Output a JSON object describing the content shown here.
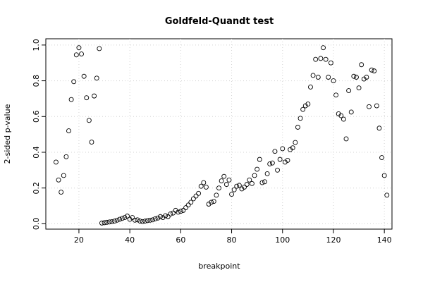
{
  "chart_data": {
    "type": "scatter",
    "title": "Goldfeld-Quandt test",
    "xlabel": "breakpoint",
    "ylabel": "2-sided p-value",
    "x": [
      11,
      12,
      13,
      14,
      15,
      16,
      17,
      18,
      19,
      20,
      21,
      22,
      23,
      24,
      25,
      26,
      27,
      28,
      29,
      30,
      31,
      32,
      33,
      34,
      35,
      36,
      37,
      38,
      39,
      40,
      41,
      42,
      43,
      44,
      45,
      46,
      47,
      48,
      49,
      50,
      51,
      52,
      53,
      54,
      55,
      56,
      57,
      58,
      59,
      60,
      61,
      62,
      63,
      64,
      65,
      66,
      67,
      68,
      69,
      70,
      71,
      72,
      73,
      74,
      75,
      76,
      77,
      78,
      79,
      80,
      81,
      82,
      83,
      84,
      85,
      86,
      87,
      88,
      89,
      90,
      91,
      92,
      93,
      94,
      95,
      96,
      97,
      98,
      99,
      100,
      101,
      102,
      103,
      104,
      105,
      106,
      107,
      108,
      109,
      110,
      111,
      112,
      113,
      114,
      115,
      116,
      117,
      118,
      119,
      120,
      121,
      122,
      123,
      124,
      125,
      126,
      127,
      128,
      129,
      130,
      131,
      132,
      133,
      134,
      135,
      136,
      137,
      138,
      139,
      140,
      141
    ],
    "values": [
      0.345,
      0.245,
      0.177,
      0.27,
      0.375,
      0.52,
      0.695,
      0.795,
      0.945,
      0.985,
      0.95,
      0.825,
      0.705,
      0.578,
      0.457,
      0.715,
      0.815,
      0.98,
      0.004,
      0.006,
      0.008,
      0.01,
      0.012,
      0.015,
      0.02,
      0.025,
      0.03,
      0.035,
      0.043,
      0.025,
      0.035,
      0.02,
      0.022,
      0.015,
      0.012,
      0.015,
      0.018,
      0.02,
      0.022,
      0.028,
      0.032,
      0.04,
      0.035,
      0.045,
      0.04,
      0.055,
      0.06,
      0.075,
      0.065,
      0.07,
      0.075,
      0.09,
      0.105,
      0.12,
      0.14,
      0.155,
      0.17,
      0.21,
      0.23,
      0.205,
      0.11,
      0.12,
      0.125,
      0.16,
      0.2,
      0.24,
      0.265,
      0.22,
      0.245,
      0.165,
      0.19,
      0.21,
      0.215,
      0.195,
      0.205,
      0.22,
      0.245,
      0.225,
      0.27,
      0.305,
      0.36,
      0.23,
      0.235,
      0.28,
      0.335,
      0.34,
      0.405,
      0.3,
      0.36,
      0.42,
      0.345,
      0.355,
      0.415,
      0.425,
      0.455,
      0.54,
      0.59,
      0.64,
      0.66,
      0.67,
      0.765,
      0.83,
      0.92,
      0.82,
      0.925,
      0.985,
      0.92,
      0.82,
      0.9,
      0.8,
      0.72,
      0.615,
      0.605,
      0.585,
      0.475,
      0.745,
      0.625,
      0.825,
      0.82,
      0.76,
      0.89,
      0.81,
      0.82,
      0.655,
      0.86,
      0.855,
      0.66,
      0.535,
      0.37,
      0.27,
      0.16
    ],
    "color": "#000000",
    "xlim": [
      7,
      143
    ],
    "xticks": [
      20,
      40,
      60,
      80,
      100,
      120,
      140
    ],
    "ylim": [
      -0.03,
      1.035
    ],
    "yticks": [
      {
        "value": 0,
        "label": "0.0"
      },
      {
        "value": 0.2,
        "label": "0.2"
      },
      {
        "value": 0.4,
        "label": "0.4"
      },
      {
        "value": 0.6,
        "label": "0.6"
      },
      {
        "value": 0.8,
        "label": "0.8"
      },
      {
        "value": 1,
        "label": "1.0"
      }
    ],
    "grid": true
  }
}
